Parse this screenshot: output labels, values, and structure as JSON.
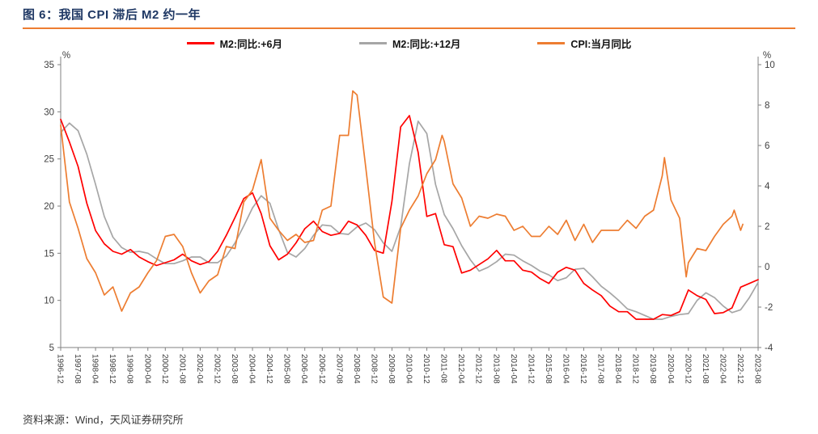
{
  "header": {
    "title": "图 6：我国 CPI 滞后 M2 约一年"
  },
  "footer": {
    "source": "资料来源：Wind，天风证券研究所"
  },
  "legend": [
    {
      "label": "M2:同比:+6月",
      "color": "#FF0000"
    },
    {
      "label": "M2:同比:+12月",
      "color": "#A6A6A6"
    },
    {
      "label": "CPI:当月同比",
      "color": "#ED7D31"
    }
  ],
  "chart_data": {
    "type": "line",
    "title": "图 6：我国 CPI 滞后 M2 约一年",
    "x_unit": "months since 1996-12",
    "x_max": 320,
    "x_tick_step": 8,
    "x_tick_labels": [
      "1996-12",
      "1997-08",
      "1998-04",
      "1998-12",
      "1999-08",
      "2000-04",
      "2000-12",
      "2001-08",
      "2002-04",
      "2002-12",
      "2003-08",
      "2004-04",
      "2004-12",
      "2005-08",
      "2006-04",
      "2006-12",
      "2007-08",
      "2008-04",
      "2008-12",
      "2009-08",
      "2010-04",
      "2010-12",
      "2011-08",
      "2012-04",
      "2012-12",
      "2013-08",
      "2014-04",
      "2014-12",
      "2015-08",
      "2016-04",
      "2016-12",
      "2017-08",
      "2018-04",
      "2018-12",
      "2019-08",
      "2020-04",
      "2020-12",
      "2021-08",
      "2022-04",
      "2022-12",
      "2023-08"
    ],
    "left_axis": {
      "label": "%",
      "min": 5,
      "max": 35,
      "ticks": [
        5,
        10,
        15,
        20,
        25,
        30,
        35
      ]
    },
    "right_axis": {
      "label": "%",
      "min": -4,
      "max": 10,
      "ticks": [
        -4,
        -2,
        0,
        2,
        4,
        6,
        8,
        10
      ]
    },
    "grid": false,
    "legend_position": "top-center",
    "series": [
      {
        "name": "M2:同比:+12月",
        "axis": "left",
        "color": "#A6A6A6",
        "points": [
          [
            0,
            27.8
          ],
          [
            4,
            28.8
          ],
          [
            8,
            28.0
          ],
          [
            12,
            25.5
          ],
          [
            16,
            22.3
          ],
          [
            20,
            18.9
          ],
          [
            24,
            16.7
          ],
          [
            28,
            15.6
          ],
          [
            32,
            15.1
          ],
          [
            36,
            15.2
          ],
          [
            40,
            15.0
          ],
          [
            44,
            14.4
          ],
          [
            48,
            13.9
          ],
          [
            52,
            13.9
          ],
          [
            56,
            14.2
          ],
          [
            60,
            14.6
          ],
          [
            64,
            14.6
          ],
          [
            68,
            14.0
          ],
          [
            72,
            14.0
          ],
          [
            76,
            14.7
          ],
          [
            80,
            16.1
          ],
          [
            84,
            17.9
          ],
          [
            88,
            19.8
          ],
          [
            92,
            21.1
          ],
          [
            96,
            20.3
          ],
          [
            100,
            17.5
          ],
          [
            104,
            15.1
          ],
          [
            108,
            14.6
          ],
          [
            112,
            15.5
          ],
          [
            116,
            16.9
          ],
          [
            120,
            18.0
          ],
          [
            124,
            17.9
          ],
          [
            128,
            17.1
          ],
          [
            132,
            17.0
          ],
          [
            136,
            17.8
          ],
          [
            140,
            18.2
          ],
          [
            144,
            17.5
          ],
          [
            148,
            16.1
          ],
          [
            152,
            15.2
          ],
          [
            156,
            17.8
          ],
          [
            160,
            24.5
          ],
          [
            164,
            29.0
          ],
          [
            168,
            27.7
          ],
          [
            172,
            22.3
          ],
          [
            176,
            19.1
          ],
          [
            180,
            17.6
          ],
          [
            184,
            15.8
          ],
          [
            188,
            14.3
          ],
          [
            192,
            13.1
          ],
          [
            196,
            13.5
          ],
          [
            200,
            14.1
          ],
          [
            204,
            14.9
          ],
          [
            208,
            14.8
          ],
          [
            212,
            14.2
          ],
          [
            216,
            13.7
          ],
          [
            220,
            13.1
          ],
          [
            224,
            12.7
          ],
          [
            228,
            12.1
          ],
          [
            232,
            12.4
          ],
          [
            236,
            13.3
          ],
          [
            240,
            13.4
          ],
          [
            244,
            12.5
          ],
          [
            248,
            11.5
          ],
          [
            252,
            10.8
          ],
          [
            256,
            10.0
          ],
          [
            260,
            9.1
          ],
          [
            264,
            8.8
          ],
          [
            268,
            8.4
          ],
          [
            272,
            8.0
          ],
          [
            276,
            8.0
          ],
          [
            280,
            8.3
          ],
          [
            284,
            8.5
          ],
          [
            288,
            8.6
          ],
          [
            292,
            10.0
          ],
          [
            296,
            10.8
          ],
          [
            300,
            10.3
          ],
          [
            304,
            9.4
          ],
          [
            308,
            8.7
          ],
          [
            312,
            9.0
          ],
          [
            316,
            10.3
          ],
          [
            320,
            11.9
          ]
        ]
      },
      {
        "name": "M2:同比:+6月",
        "axis": "left",
        "color": "#FF0000",
        "points": [
          [
            0,
            29.2
          ],
          [
            4,
            26.8
          ],
          [
            8,
            24.2
          ],
          [
            12,
            20.3
          ],
          [
            16,
            17.4
          ],
          [
            20,
            16.0
          ],
          [
            24,
            15.2
          ],
          [
            28,
            14.9
          ],
          [
            32,
            15.4
          ],
          [
            36,
            14.6
          ],
          [
            40,
            14.1
          ],
          [
            44,
            13.7
          ],
          [
            48,
            14.0
          ],
          [
            52,
            14.3
          ],
          [
            56,
            14.9
          ],
          [
            60,
            14.2
          ],
          [
            64,
            13.8
          ],
          [
            68,
            14.1
          ],
          [
            72,
            15.2
          ],
          [
            76,
            16.9
          ],
          [
            80,
            18.8
          ],
          [
            84,
            20.8
          ],
          [
            88,
            21.4
          ],
          [
            92,
            19.2
          ],
          [
            96,
            15.8
          ],
          [
            100,
            14.3
          ],
          [
            104,
            14.9
          ],
          [
            108,
            16.1
          ],
          [
            112,
            17.6
          ],
          [
            116,
            18.4
          ],
          [
            120,
            17.3
          ],
          [
            124,
            16.9
          ],
          [
            128,
            17.1
          ],
          [
            132,
            18.4
          ],
          [
            136,
            18.0
          ],
          [
            140,
            16.9
          ],
          [
            144,
            15.3
          ],
          [
            148,
            15.0
          ],
          [
            152,
            20.5
          ],
          [
            156,
            28.4
          ],
          [
            160,
            29.6
          ],
          [
            164,
            25.7
          ],
          [
            168,
            18.9
          ],
          [
            172,
            19.2
          ],
          [
            176,
            15.9
          ],
          [
            180,
            15.7
          ],
          [
            184,
            12.9
          ],
          [
            188,
            13.2
          ],
          [
            192,
            13.8
          ],
          [
            196,
            14.4
          ],
          [
            200,
            15.3
          ],
          [
            204,
            14.2
          ],
          [
            208,
            14.2
          ],
          [
            212,
            13.2
          ],
          [
            216,
            13.0
          ],
          [
            220,
            12.3
          ],
          [
            224,
            11.8
          ],
          [
            228,
            13.0
          ],
          [
            232,
            13.5
          ],
          [
            236,
            13.2
          ],
          [
            240,
            11.8
          ],
          [
            244,
            11.1
          ],
          [
            248,
            10.5
          ],
          [
            252,
            9.4
          ],
          [
            256,
            8.8
          ],
          [
            260,
            8.8
          ],
          [
            264,
            8.0
          ],
          [
            268,
            8.0
          ],
          [
            272,
            8.0
          ],
          [
            276,
            8.5
          ],
          [
            280,
            8.4
          ],
          [
            284,
            8.8
          ],
          [
            288,
            11.1
          ],
          [
            292,
            10.5
          ],
          [
            296,
            10.1
          ],
          [
            300,
            8.6
          ],
          [
            304,
            8.7
          ],
          [
            308,
            9.2
          ],
          [
            312,
            11.4
          ],
          [
            316,
            11.8
          ],
          [
            320,
            12.2
          ]
        ]
      },
      {
        "name": "CPI:当月同比",
        "axis": "right",
        "color": "#ED7D31",
        "points": [
          [
            0,
            7.0
          ],
          [
            4,
            3.2
          ],
          [
            8,
            1.9
          ],
          [
            12,
            0.4
          ],
          [
            16,
            -0.3
          ],
          [
            20,
            -1.4
          ],
          [
            24,
            -1.0
          ],
          [
            28,
            -2.2
          ],
          [
            32,
            -1.3
          ],
          [
            36,
            -1.0
          ],
          [
            40,
            -0.3
          ],
          [
            44,
            0.3
          ],
          [
            48,
            1.5
          ],
          [
            52,
            1.6
          ],
          [
            56,
            1.0
          ],
          [
            60,
            -0.3
          ],
          [
            64,
            -1.3
          ],
          [
            68,
            -0.7
          ],
          [
            72,
            -0.4
          ],
          [
            76,
            1.0
          ],
          [
            80,
            0.9
          ],
          [
            84,
            3.2
          ],
          [
            88,
            3.8
          ],
          [
            92,
            5.3
          ],
          [
            96,
            2.4
          ],
          [
            100,
            1.8
          ],
          [
            104,
            1.3
          ],
          [
            108,
            1.6
          ],
          [
            112,
            1.2
          ],
          [
            116,
            1.3
          ],
          [
            120,
            2.8
          ],
          [
            124,
            3.0
          ],
          [
            128,
            6.5
          ],
          [
            132,
            6.5
          ],
          [
            134,
            8.7
          ],
          [
            136,
            8.5
          ],
          [
            140,
            4.9
          ],
          [
            144,
            1.2
          ],
          [
            148,
            -1.5
          ],
          [
            152,
            -1.8
          ],
          [
            156,
            1.9
          ],
          [
            160,
            2.8
          ],
          [
            164,
            3.5
          ],
          [
            168,
            4.6
          ],
          [
            172,
            5.3
          ],
          [
            175,
            6.5
          ],
          [
            176,
            6.2
          ],
          [
            180,
            4.1
          ],
          [
            184,
            3.4
          ],
          [
            188,
            2.0
          ],
          [
            192,
            2.5
          ],
          [
            196,
            2.4
          ],
          [
            200,
            2.6
          ],
          [
            204,
            2.5
          ],
          [
            208,
            1.8
          ],
          [
            212,
            2.0
          ],
          [
            216,
            1.5
          ],
          [
            220,
            1.5
          ],
          [
            224,
            2.0
          ],
          [
            228,
            1.6
          ],
          [
            232,
            2.3
          ],
          [
            236,
            1.3
          ],
          [
            240,
            2.1
          ],
          [
            244,
            1.2
          ],
          [
            248,
            1.8
          ],
          [
            252,
            1.8
          ],
          [
            256,
            1.8
          ],
          [
            260,
            2.3
          ],
          [
            264,
            1.9
          ],
          [
            268,
            2.5
          ],
          [
            272,
            2.8
          ],
          [
            276,
            4.5
          ],
          [
            277,
            5.4
          ],
          [
            280,
            3.3
          ],
          [
            284,
            2.4
          ],
          [
            287,
            -0.5
          ],
          [
            288,
            0.2
          ],
          [
            292,
            0.9
          ],
          [
            296,
            0.8
          ],
          [
            300,
            1.5
          ],
          [
            304,
            2.1
          ],
          [
            308,
            2.5
          ],
          [
            309,
            2.8
          ],
          [
            312,
            1.8
          ],
          [
            313,
            2.1
          ]
        ]
      }
    ]
  }
}
